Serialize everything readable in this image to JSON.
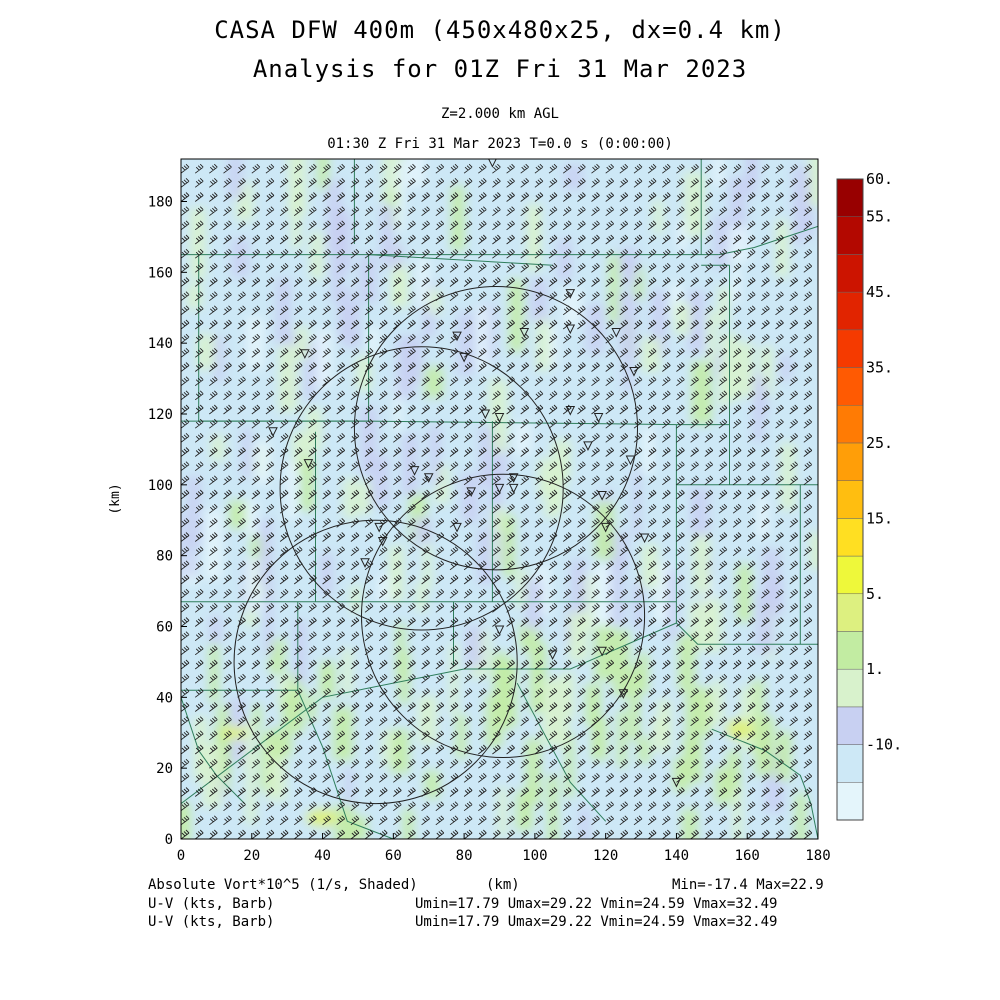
{
  "header": {
    "title_line1": "CASA DFW 400m (450x480x25, dx=0.4 km)",
    "title_line2": "Analysis for 01Z Fri 31 Mar 2023",
    "level": "Z=2.000 km AGL",
    "time": "01:30 Z Fri 31 Mar 2023    T=0.0 s (0:00:00)"
  },
  "footer": {
    "field_label": "Absolute Vort*10^5 (1/s, Shaded)",
    "xunit": "(km)",
    "minmax": "Min=-17.4 Max=22.9",
    "barb1_label": "U-V (kts, Barb)",
    "barb1_stats": "Umin=17.79 Umax=29.22 Vmin=24.59 Vmax=32.49",
    "barb2_label": "U-V (kts, Barb)",
    "barb2_stats": "Umin=17.79 Umax=29.22 Vmin=24.59 Vmax=32.49"
  },
  "chart_data": {
    "type": "heatmap",
    "field": "Absolute Vorticity x10^5 (1/s) with wind barbs",
    "xlabel": "(km)",
    "ylabel": "(km)",
    "xlim": [
      0,
      180
    ],
    "ylim": [
      0,
      192
    ],
    "xticks": [
      "0",
      "20",
      "40",
      "60",
      "80",
      "100",
      "120",
      "140",
      "160",
      "180"
    ],
    "yticks": [
      "0",
      "20",
      "40",
      "60",
      "80",
      "100",
      "120",
      "140",
      "160",
      "180"
    ],
    "colorbar": {
      "labels": [
        {
          "text": "60.",
          "value": 60
        },
        {
          "text": "55.",
          "value": 55
        },
        {
          "text": "45.",
          "value": 45
        },
        {
          "text": "35.",
          "value": 35
        },
        {
          "text": "25.",
          "value": 25
        },
        {
          "text": "15.",
          "value": 15
        },
        {
          "text": "5.",
          "value": 5
        },
        {
          "text": "1.",
          "value": 1
        },
        {
          "text": "-10.",
          "value": -10
        }
      ],
      "colors": [
        "#e4f5fb",
        "#cde8f6",
        "#c8d0f2",
        "#d8f2cc",
        "#c2eca2",
        "#ddf080",
        "#eef83a",
        "#ffdf22",
        "#ffbe10",
        "#ff9e08",
        "#ff7b04",
        "#ff5a02",
        "#f53a00",
        "#e12400",
        "#cc1400",
        "#b30800",
        "#980000"
      ]
    },
    "wind": {
      "units": "kts",
      "u_range": [
        17.79,
        29.22
      ],
      "v_range": [
        24.59,
        32.49
      ]
    },
    "radar_rings": [
      {
        "center": [
          89,
          116
        ],
        "radius": 40
      },
      {
        "center": [
          68,
          99
        ],
        "radius": 40
      },
      {
        "center": [
          91,
          63
        ],
        "radius": 40
      },
      {
        "center": [
          55,
          50
        ],
        "radius": 40
      }
    ],
    "stations": [
      [
        88,
        191
      ],
      [
        110,
        154
      ],
      [
        110,
        144
      ],
      [
        123,
        143
      ],
      [
        97,
        143
      ],
      [
        78,
        142
      ],
      [
        80,
        136
      ],
      [
        35,
        137
      ],
      [
        128,
        132
      ],
      [
        110,
        121
      ],
      [
        86,
        120
      ],
      [
        90,
        119
      ],
      [
        118,
        119
      ],
      [
        26,
        115
      ],
      [
        115,
        111
      ],
      [
        127,
        107
      ],
      [
        36,
        106
      ],
      [
        66,
        104
      ],
      [
        70,
        102
      ],
      [
        94,
        102
      ],
      [
        90,
        99
      ],
      [
        94,
        99
      ],
      [
        82,
        98
      ],
      [
        119,
        97
      ],
      [
        56,
        88
      ],
      [
        78,
        88
      ],
      [
        120,
        88
      ],
      [
        57,
        84
      ],
      [
        131,
        85
      ],
      [
        52,
        78
      ],
      [
        90,
        59
      ],
      [
        105,
        52
      ],
      [
        119,
        53
      ],
      [
        125,
        41
      ],
      [
        140,
        16
      ]
    ]
  }
}
